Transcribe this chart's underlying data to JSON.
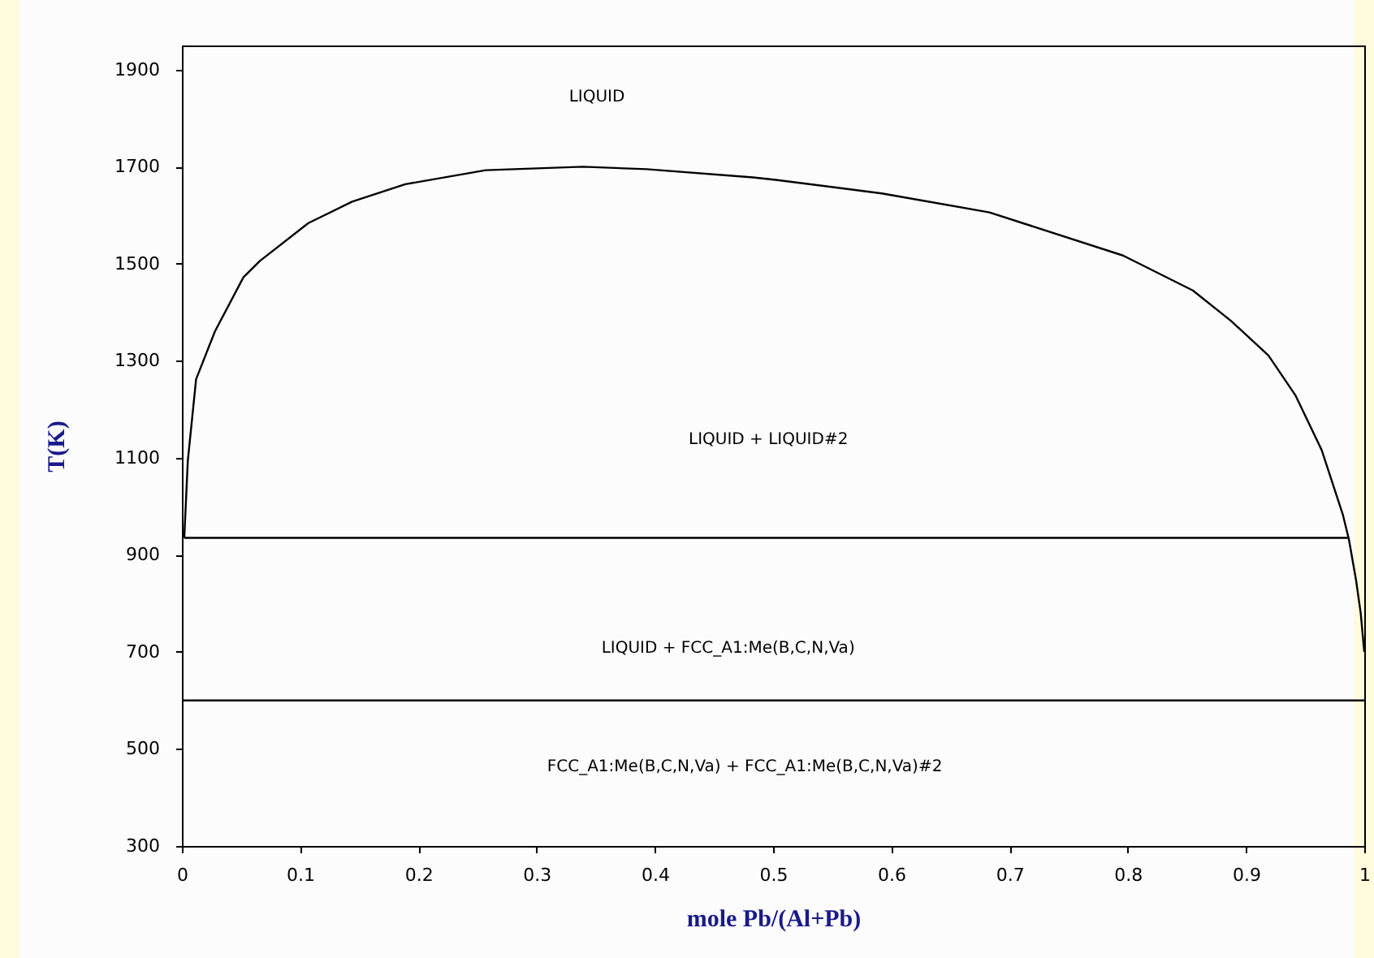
{
  "chart_data": {
    "type": "line",
    "xlabel": "mole Pb/(Al+Pb)",
    "ylabel": "T(K)",
    "xlim": [
      0,
      1
    ],
    "ylim": [
      300,
      1950
    ],
    "xticks": [
      0,
      0.1,
      0.2,
      0.3,
      0.4,
      0.5,
      0.6,
      0.7,
      0.8,
      0.9,
      1
    ],
    "yticks": [
      300,
      500,
      700,
      900,
      1100,
      1300,
      1500,
      1700,
      1900
    ],
    "series": [
      {
        "color": "#000000",
        "x": [
          0.002,
          0.005,
          0.012,
          0.028,
          0.052,
          0.066,
          0.107,
          0.144,
          0.189,
          0.257,
          0.339,
          0.393,
          0.483,
          0.502,
          0.592,
          0.683,
          0.796,
          0.855,
          0.887,
          0.919,
          0.942,
          0.964,
          0.982,
          0.987,
          0.993,
          0.997,
          1.0
        ],
        "values": [
          935,
          1094,
          1262,
          1361,
          1472,
          1506,
          1584,
          1628,
          1664,
          1693,
          1700,
          1695,
          1678,
          1673,
          1645,
          1606,
          1517,
          1445,
          1383,
          1311,
          1228,
          1116,
          982,
          932,
          849,
          780,
          700
        ]
      },
      {
        "color": "#000000",
        "x": [
          0.002,
          0.987
        ],
        "values": [
          935,
          935
        ]
      },
      {
        "color": "#000000",
        "x": [
          0,
          1
        ],
        "values": [
          600,
          600
        ]
      }
    ],
    "annotations": [
      "LIQUID",
      "LIQUID + LIQUID#2",
      "LIQUID + FCC_A1:Me(B,C,N,Va)",
      "FCC_A1:Me(B,C,N,Va) + FCC_A1:Me(B,C,N,Va)#2"
    ]
  }
}
